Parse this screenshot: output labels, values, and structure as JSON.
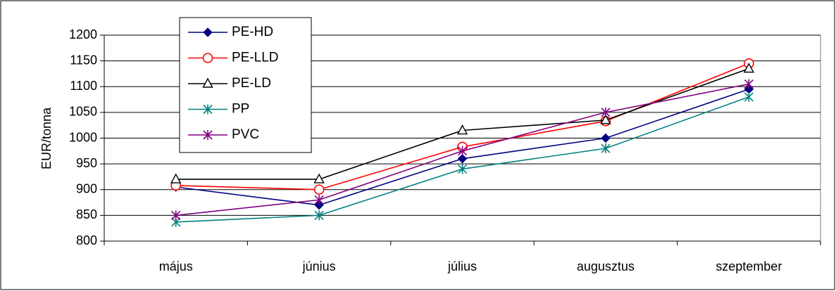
{
  "chart_data": {
    "type": "line",
    "title": "",
    "xlabel": "",
    "ylabel": "EUR/tonna",
    "categories": [
      "május",
      "június",
      "július",
      "augusztus",
      "szeptember"
    ],
    "ylim": [
      800,
      1200
    ],
    "yticks": [
      800,
      850,
      900,
      950,
      1000,
      1050,
      1100,
      1150,
      1200
    ],
    "grid": true,
    "legend_position": "top-left",
    "series": [
      {
        "name": "PE-HD",
        "values": [
          905,
          870,
          960,
          1000,
          1095
        ],
        "color": "#000080",
        "marker": "diamond-filled"
      },
      {
        "name": "PE-LLD",
        "values": [
          908,
          900,
          983,
          1033,
          1145
        ],
        "color": "#ff0000",
        "marker": "circle-open"
      },
      {
        "name": "PE-LD",
        "values": [
          920,
          920,
          1015,
          1035,
          1135
        ],
        "color": "#000000",
        "marker": "triangle-open"
      },
      {
        "name": "PP",
        "values": [
          837,
          850,
          940,
          980,
          1080
        ],
        "color": "#008080",
        "marker": "asterisk"
      },
      {
        "name": "PVC",
        "values": [
          850,
          880,
          975,
          1050,
          1105
        ],
        "color": "#800080",
        "marker": "asterisk"
      }
    ]
  }
}
